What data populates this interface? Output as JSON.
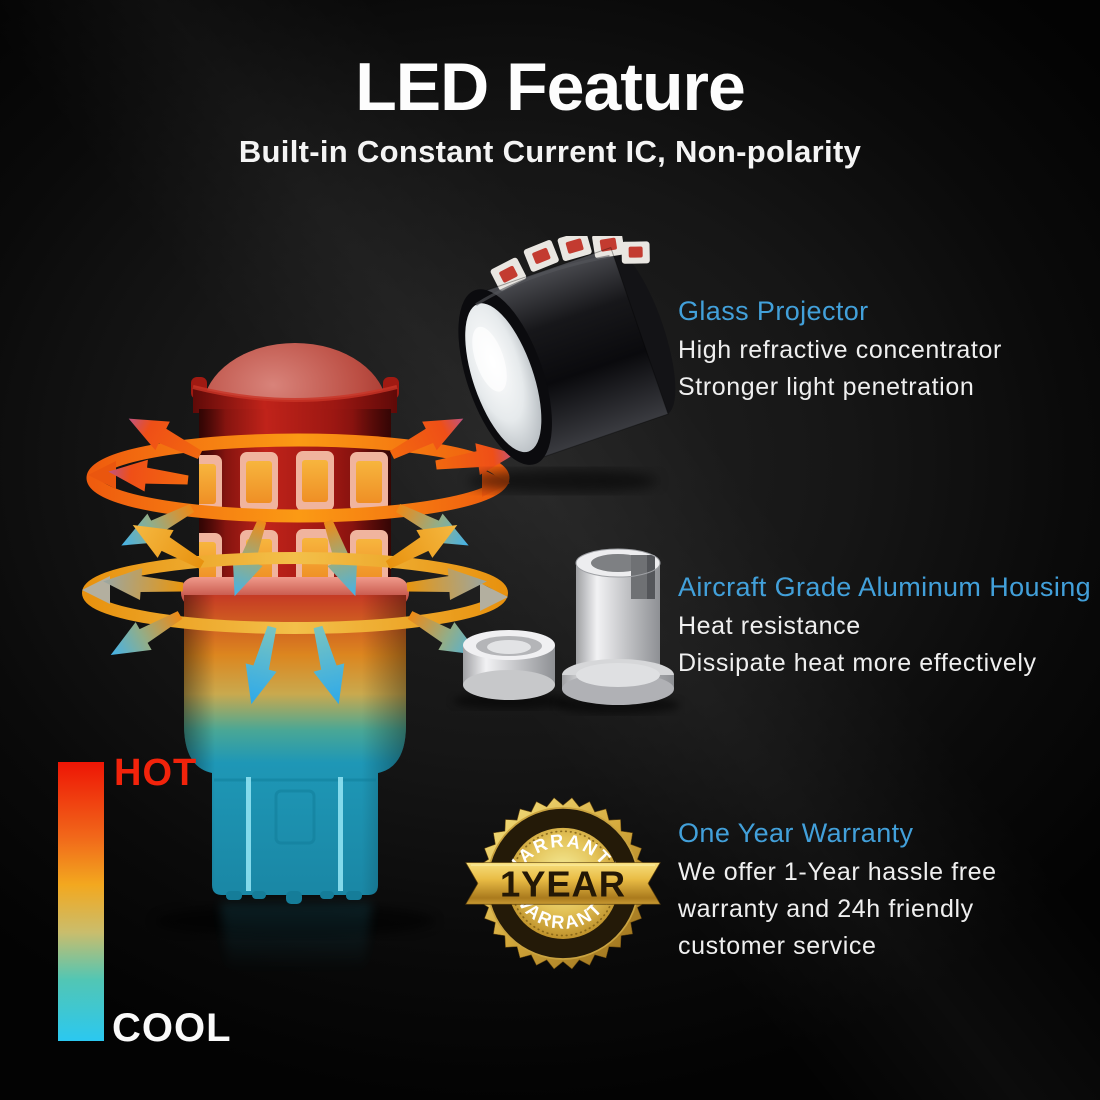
{
  "header": {
    "title": "LED Feature",
    "subtitle": "Built-in Constant Current IC, Non-polarity"
  },
  "features": [
    {
      "heading": "Glass Projector",
      "lines": [
        "High refractive concentrator",
        "Stronger light penetration"
      ],
      "illustration": "glass-projector-lens"
    },
    {
      "heading": "Aircraft Grade Aluminum Housing",
      "lines": [
        "Heat resistance",
        "Dissipate heat more effectively"
      ],
      "illustration": "aluminum-housing-parts"
    },
    {
      "heading": "One Year Warranty",
      "lines": [
        "We offer 1-Year hassle free",
        "warranty and 24h friendly",
        "customer service"
      ],
      "illustration": "one-year-warranty-badge"
    }
  ],
  "badge": {
    "top_text": "WARRANTY",
    "center_text": "1YEAR",
    "bottom_text": "WARRANTY"
  },
  "thermal_legend": {
    "hot_label": "HOT",
    "cool_label": "COOL",
    "gradient_stops": [
      "#ee1505",
      "#f1681a",
      "#f3a81f",
      "#cabd6c",
      "#52c6b4",
      "#2bc8f0"
    ]
  },
  "colors": {
    "accent_blue": "#42a0da",
    "hot_red": "#f2230b",
    "text_white": "#efefef",
    "badge_gold": "#d9ab3a",
    "bulb_red": "#b01b15",
    "bulb_teal": "#1d92b0",
    "arrow_orange": "#f0690f",
    "arrow_blue": "#2da9ea"
  }
}
